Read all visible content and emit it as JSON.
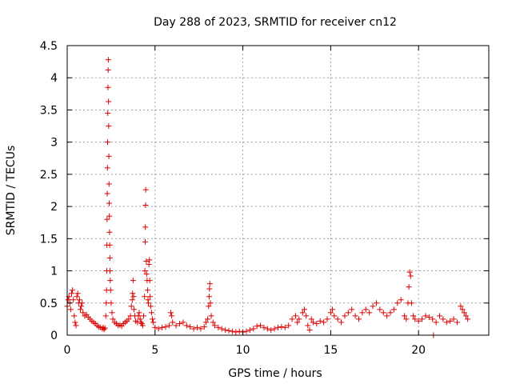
{
  "chart_data": {
    "type": "scatter",
    "title": "Day 288 of 2023, SRMTID for receiver cn12",
    "xlabel": "GPS time / hours",
    "ylabel": "SRMTID / TECUs",
    "xlim": [
      0,
      24
    ],
    "ylim": [
      0,
      4.5
    ],
    "xticks": [
      0,
      5,
      10,
      15,
      20
    ],
    "xtick_labels": [
      "0",
      "5",
      "10",
      "15",
      "20"
    ],
    "yticks": [
      0,
      0.5,
      1,
      1.5,
      2,
      2.5,
      3,
      3.5,
      4,
      4.5
    ],
    "ytick_labels": [
      "0",
      "0.5",
      "1",
      "1.5",
      "2",
      "2.5",
      "3",
      "3.5",
      "4",
      "4.5"
    ],
    "grid": true,
    "marker": "plus",
    "color": "#dd0000",
    "series": [
      {
        "name": "cn12",
        "points": [
          [
            0.0,
            0.45
          ],
          [
            0.05,
            0.55
          ],
          [
            0.1,
            0.6
          ],
          [
            0.15,
            0.5
          ],
          [
            0.2,
            0.4
          ],
          [
            0.25,
            0.65
          ],
          [
            0.3,
            0.7
          ],
          [
            0.35,
            0.55
          ],
          [
            0.4,
            0.3
          ],
          [
            0.45,
            0.2
          ],
          [
            0.5,
            0.15
          ],
          [
            0.55,
            0.6
          ],
          [
            0.6,
            0.65
          ],
          [
            0.65,
            0.5
          ],
          [
            0.7,
            0.55
          ],
          [
            0.75,
            0.4
          ],
          [
            0.8,
            0.45
          ],
          [
            0.85,
            0.5
          ],
          [
            0.9,
            0.35
          ],
          [
            1.0,
            0.3
          ],
          [
            1.1,
            0.32
          ],
          [
            1.2,
            0.28
          ],
          [
            1.3,
            0.25
          ],
          [
            1.4,
            0.22
          ],
          [
            1.5,
            0.2
          ],
          [
            1.6,
            0.18
          ],
          [
            1.7,
            0.15
          ],
          [
            1.8,
            0.13
          ],
          [
            1.9,
            0.12
          ],
          [
            2.0,
            0.1
          ],
          [
            2.05,
            0.12
          ],
          [
            2.1,
            0.09
          ],
          [
            2.15,
            0.11
          ],
          [
            2.2,
            0.3
          ],
          [
            2.22,
            0.5
          ],
          [
            2.24,
            0.7
          ],
          [
            2.25,
            1.0
          ],
          [
            2.26,
            1.4
          ],
          [
            2.27,
            1.8
          ],
          [
            2.28,
            2.2
          ],
          [
            2.29,
            2.6
          ],
          [
            2.3,
            3.0
          ],
          [
            2.31,
            3.45
          ],
          [
            2.32,
            3.85
          ],
          [
            2.33,
            4.12
          ],
          [
            2.34,
            4.28
          ],
          [
            2.35,
            3.63
          ],
          [
            2.36,
            3.25
          ],
          [
            2.37,
            2.78
          ],
          [
            2.38,
            2.35
          ],
          [
            2.39,
            2.05
          ],
          [
            2.4,
            1.85
          ],
          [
            2.41,
            1.6
          ],
          [
            2.42,
            1.4
          ],
          [
            2.43,
            1.2
          ],
          [
            2.44,
            1.0
          ],
          [
            2.45,
            0.85
          ],
          [
            2.47,
            0.7
          ],
          [
            2.5,
            0.5
          ],
          [
            2.55,
            0.35
          ],
          [
            2.6,
            0.25
          ],
          [
            2.7,
            0.2
          ],
          [
            2.8,
            0.18
          ],
          [
            2.9,
            0.15
          ],
          [
            3.0,
            0.16
          ],
          [
            3.1,
            0.14
          ],
          [
            3.2,
            0.18
          ],
          [
            3.3,
            0.2
          ],
          [
            3.4,
            0.22
          ],
          [
            3.5,
            0.25
          ],
          [
            3.6,
            0.3
          ],
          [
            3.65,
            0.45
          ],
          [
            3.7,
            0.55
          ],
          [
            3.72,
            0.65
          ],
          [
            3.75,
            0.85
          ],
          [
            3.78,
            0.6
          ],
          [
            3.8,
            0.4
          ],
          [
            3.85,
            0.3
          ],
          [
            3.9,
            0.22
          ],
          [
            4.0,
            0.2
          ],
          [
            4.05,
            0.3
          ],
          [
            4.1,
            0.35
          ],
          [
            4.15,
            0.25
          ],
          [
            4.2,
            0.2
          ],
          [
            4.25,
            0.18
          ],
          [
            4.3,
            0.15
          ],
          [
            4.35,
            0.3
          ],
          [
            4.4,
            0.6
          ],
          [
            4.42,
            1.0
          ],
          [
            4.44,
            1.45
          ],
          [
            4.45,
            1.68
          ],
          [
            4.46,
            2.02
          ],
          [
            4.47,
            2.26
          ],
          [
            4.5,
            1.15
          ],
          [
            4.52,
            0.95
          ],
          [
            4.55,
            0.85
          ],
          [
            4.58,
            0.7
          ],
          [
            4.6,
            0.55
          ],
          [
            4.62,
            0.5
          ],
          [
            4.65,
            1.1
          ],
          [
            4.68,
            1.17
          ],
          [
            4.7,
            0.85
          ],
          [
            4.72,
            0.6
          ],
          [
            4.75,
            0.45
          ],
          [
            4.8,
            0.35
          ],
          [
            4.85,
            0.25
          ],
          [
            4.9,
            0.2
          ],
          [
            5.0,
            0.12
          ],
          [
            5.2,
            0.1
          ],
          [
            5.4,
            0.12
          ],
          [
            5.6,
            0.13
          ],
          [
            5.8,
            0.15
          ],
          [
            5.9,
            0.35
          ],
          [
            5.95,
            0.3
          ],
          [
            6.0,
            0.2
          ],
          [
            6.2,
            0.15
          ],
          [
            6.4,
            0.18
          ],
          [
            6.6,
            0.2
          ],
          [
            6.8,
            0.15
          ],
          [
            7.0,
            0.13
          ],
          [
            7.2,
            0.1
          ],
          [
            7.4,
            0.12
          ],
          [
            7.6,
            0.1
          ],
          [
            7.8,
            0.13
          ],
          [
            7.9,
            0.2
          ],
          [
            8.0,
            0.25
          ],
          [
            8.05,
            0.45
          ],
          [
            8.08,
            0.6
          ],
          [
            8.1,
            0.72
          ],
          [
            8.12,
            0.8
          ],
          [
            8.15,
            0.5
          ],
          [
            8.2,
            0.3
          ],
          [
            8.3,
            0.2
          ],
          [
            8.4,
            0.15
          ],
          [
            8.6,
            0.12
          ],
          [
            8.8,
            0.1
          ],
          [
            9.0,
            0.08
          ],
          [
            9.2,
            0.07
          ],
          [
            9.4,
            0.06
          ],
          [
            9.6,
            0.05
          ],
          [
            9.8,
            0.06
          ],
          [
            10.0,
            0.05
          ],
          [
            10.2,
            0.06
          ],
          [
            10.4,
            0.08
          ],
          [
            10.6,
            0.1
          ],
          [
            10.8,
            0.14
          ],
          [
            11.0,
            0.15
          ],
          [
            11.2,
            0.12
          ],
          [
            11.4,
            0.1
          ],
          [
            11.6,
            0.08
          ],
          [
            11.8,
            0.1
          ],
          [
            12.0,
            0.12
          ],
          [
            12.2,
            0.13
          ],
          [
            12.4,
            0.12
          ],
          [
            12.6,
            0.15
          ],
          [
            12.8,
            0.25
          ],
          [
            13.0,
            0.3
          ],
          [
            13.1,
            0.2
          ],
          [
            13.2,
            0.25
          ],
          [
            13.4,
            0.35
          ],
          [
            13.5,
            0.4
          ],
          [
            13.6,
            0.3
          ],
          [
            13.7,
            0.15
          ],
          [
            13.8,
            0.08
          ],
          [
            13.9,
            0.25
          ],
          [
            14.0,
            0.2
          ],
          [
            14.2,
            0.18
          ],
          [
            14.4,
            0.22
          ],
          [
            14.6,
            0.2
          ],
          [
            14.8,
            0.25
          ],
          [
            15.0,
            0.35
          ],
          [
            15.1,
            0.4
          ],
          [
            15.2,
            0.3
          ],
          [
            15.4,
            0.25
          ],
          [
            15.6,
            0.2
          ],
          [
            15.8,
            0.3
          ],
          [
            16.0,
            0.35
          ],
          [
            16.2,
            0.4
          ],
          [
            16.4,
            0.3
          ],
          [
            16.6,
            0.25
          ],
          [
            16.8,
            0.35
          ],
          [
            17.0,
            0.4
          ],
          [
            17.2,
            0.35
          ],
          [
            17.4,
            0.45
          ],
          [
            17.6,
            0.5
          ],
          [
            17.8,
            0.4
          ],
          [
            18.0,
            0.35
          ],
          [
            18.2,
            0.3
          ],
          [
            18.4,
            0.35
          ],
          [
            18.6,
            0.4
          ],
          [
            18.8,
            0.5
          ],
          [
            19.0,
            0.55
          ],
          [
            19.2,
            0.3
          ],
          [
            19.3,
            0.25
          ],
          [
            19.4,
            0.5
          ],
          [
            19.45,
            0.75
          ],
          [
            19.5,
            0.98
          ],
          [
            19.55,
            0.92
          ],
          [
            19.6,
            0.5
          ],
          [
            19.7,
            0.3
          ],
          [
            19.8,
            0.25
          ],
          [
            20.0,
            0.22
          ],
          [
            20.2,
            0.25
          ],
          [
            20.4,
            0.3
          ],
          [
            20.6,
            0.28
          ],
          [
            20.8,
            0.25
          ],
          [
            20.85,
            0.0
          ],
          [
            21.0,
            0.2
          ],
          [
            21.2,
            0.3
          ],
          [
            21.4,
            0.25
          ],
          [
            21.6,
            0.2
          ],
          [
            21.8,
            0.22
          ],
          [
            22.0,
            0.25
          ],
          [
            22.2,
            0.2
          ],
          [
            22.4,
            0.45
          ],
          [
            22.5,
            0.4
          ],
          [
            22.6,
            0.35
          ],
          [
            22.7,
            0.3
          ],
          [
            22.8,
            0.25
          ]
        ]
      }
    ]
  }
}
